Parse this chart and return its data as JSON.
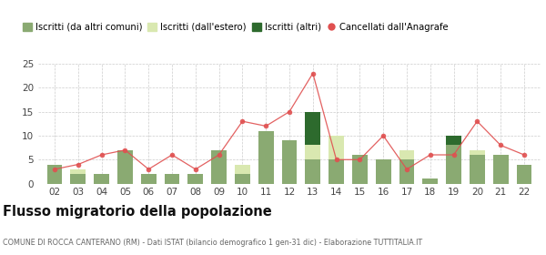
{
  "years": [
    "02",
    "03",
    "04",
    "05",
    "06",
    "07",
    "08",
    "09",
    "10",
    "11",
    "12",
    "13",
    "14",
    "15",
    "16",
    "17",
    "18",
    "19",
    "20",
    "21",
    "22"
  ],
  "iscritti_da_altri": [
    4,
    2,
    2,
    7,
    2,
    2,
    2,
    7,
    2,
    11,
    9,
    5,
    5,
    6,
    5,
    5,
    1,
    8,
    6,
    6,
    4
  ],
  "iscritti_estero": [
    0,
    1,
    0,
    0,
    0,
    0,
    0,
    0,
    2,
    0,
    0,
    3,
    5,
    0,
    0,
    2,
    0,
    0,
    1,
    0,
    0
  ],
  "iscritti_altri": [
    0,
    0,
    0,
    0,
    0,
    0,
    0,
    0,
    0,
    0,
    0,
    7,
    0,
    0,
    0,
    0,
    0,
    2,
    0,
    0,
    0
  ],
  "cancellati": [
    3,
    4,
    6,
    7,
    3,
    6,
    3,
    6,
    13,
    12,
    15,
    23,
    5,
    5,
    10,
    3,
    6,
    6,
    13,
    8,
    6
  ],
  "color_da_altri": "#8aaa72",
  "color_estero": "#d9e8b0",
  "color_altri": "#2d6a2d",
  "color_cancellati": "#e05050",
  "background": "#ffffff",
  "grid_color": "#cccccc",
  "ylim": [
    0,
    25
  ],
  "yticks": [
    0,
    5,
    10,
    15,
    20,
    25
  ],
  "title": "Flusso migratorio della popolazione",
  "subtitle": "COMUNE DI ROCCA CANTERANO (RM) - Dati ISTAT (bilancio demografico 1 gen-31 dic) - Elaborazione TUTTITALIA.IT",
  "legend_labels": [
    "Iscritti (da altri comuni)",
    "Iscritti (dall'estero)",
    "Iscritti (altri)",
    "Cancellati dall'Anagrafe"
  ]
}
